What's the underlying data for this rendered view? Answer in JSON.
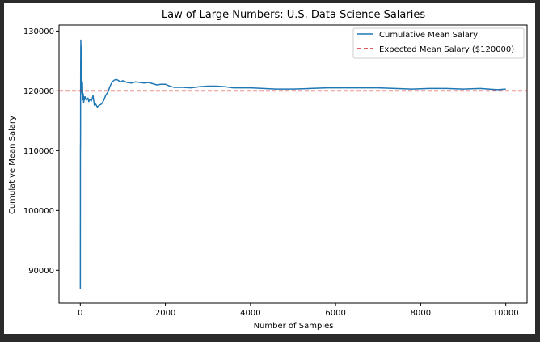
{
  "chart_data": {
    "type": "line",
    "title": "Law of Large Numbers: U.S. Data Science Salaries",
    "xlabel": "Number of Samples",
    "ylabel": "Cumulative Mean Salary",
    "xlim": [
      -500,
      10500
    ],
    "ylim": [
      84500,
      131000
    ],
    "xticks": [
      0,
      2000,
      4000,
      6000,
      8000,
      10000
    ],
    "xtick_labels": [
      "0",
      "2000",
      "4000",
      "6000",
      "8000",
      "10000"
    ],
    "yticks": [
      90000,
      100000,
      110000,
      120000,
      130000
    ],
    "ytick_labels": [
      "90000",
      "100000",
      "110000",
      "120000",
      "130000"
    ],
    "grid": false,
    "legend_position": "upper right",
    "series": [
      {
        "name": "Cumulative Mean Salary",
        "color": "#1f77b4",
        "style": "solid",
        "x": [
          1,
          3,
          5,
          8,
          10,
          12,
          15,
          20,
          25,
          30,
          35,
          40,
          50,
          60,
          70,
          80,
          90,
          100,
          120,
          150,
          180,
          200,
          230,
          260,
          300,
          330,
          360,
          400,
          450,
          500,
          550,
          600,
          650,
          700,
          750,
          800,
          850,
          900,
          950,
          1000,
          1100,
          1200,
          1300,
          1400,
          1500,
          1600,
          1700,
          1800,
          1900,
          2000,
          2100,
          2200,
          2400,
          2600,
          2800,
          3000,
          3200,
          3400,
          3600,
          3800,
          4000,
          4300,
          4600,
          5000,
          5400,
          5800,
          6200,
          6600,
          7000,
          7400,
          7800,
          8200,
          8600,
          9000,
          9400,
          9800,
          10000
        ],
        "values": [
          86800,
          111000,
          110500,
          124000,
          126000,
          128500,
          125000,
          127500,
          124000,
          122000,
          120000,
          119500,
          121500,
          118500,
          119500,
          118000,
          119000,
          118500,
          119000,
          118500,
          118800,
          118200,
          118600,
          118300,
          119200,
          117600,
          117800,
          117300,
          117600,
          117800,
          118400,
          119300,
          119800,
          120800,
          121500,
          121800,
          121900,
          121700,
          121500,
          121700,
          121400,
          121300,
          121500,
          121400,
          121300,
          121400,
          121200,
          121000,
          121100,
          121100,
          120800,
          120600,
          120600,
          120500,
          120700,
          120800,
          120800,
          120700,
          120500,
          120500,
          120500,
          120400,
          120300,
          120300,
          120400,
          120500,
          120500,
          120500,
          120500,
          120400,
          120300,
          120400,
          120400,
          120300,
          120400,
          120200,
          120300
        ]
      },
      {
        "name": "Expected Mean Salary ($120000)",
        "color": "#d62728",
        "style": "dashed",
        "values": [
          120000
        ]
      }
    ]
  }
}
